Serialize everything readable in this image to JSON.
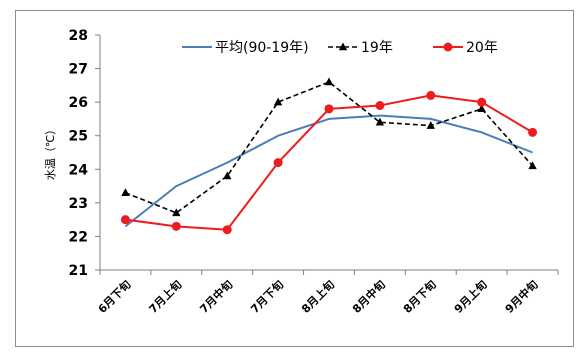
{
  "chart_data": {
    "type": "line",
    "title": "",
    "xlabel": "",
    "ylabel": "水温（℃）",
    "ylim": [
      21,
      28
    ],
    "yticks": [
      21,
      22,
      23,
      24,
      25,
      26,
      27,
      28
    ],
    "grid": false,
    "legend_position": "top-right",
    "categories": [
      "6月下旬",
      "7月上旬",
      "7月中旬",
      "7月下旬",
      "8月上旬",
      "8月中旬",
      "8月下旬",
      "9月上旬",
      "9月中旬"
    ],
    "series": [
      {
        "name": "平均(90-19年)",
        "values": [
          22.3,
          23.5,
          24.2,
          25.0,
          25.5,
          25.6,
          25.5,
          25.1,
          24.5
        ],
        "color": "#4a7ebb",
        "line_style": "solid",
        "marker": "none"
      },
      {
        "name": "19年",
        "values": [
          23.3,
          22.7,
          23.8,
          26.0,
          26.6,
          25.4,
          25.3,
          25.8,
          24.1
        ],
        "color": "#000000",
        "line_style": "dashed",
        "marker": "triangle"
      },
      {
        "name": "20年",
        "values": [
          22.5,
          22.3,
          22.2,
          24.2,
          25.8,
          25.9,
          26.2,
          26.0,
          25.1
        ],
        "color": "#ee1c1c",
        "line_style": "solid",
        "marker": "circle"
      }
    ]
  }
}
